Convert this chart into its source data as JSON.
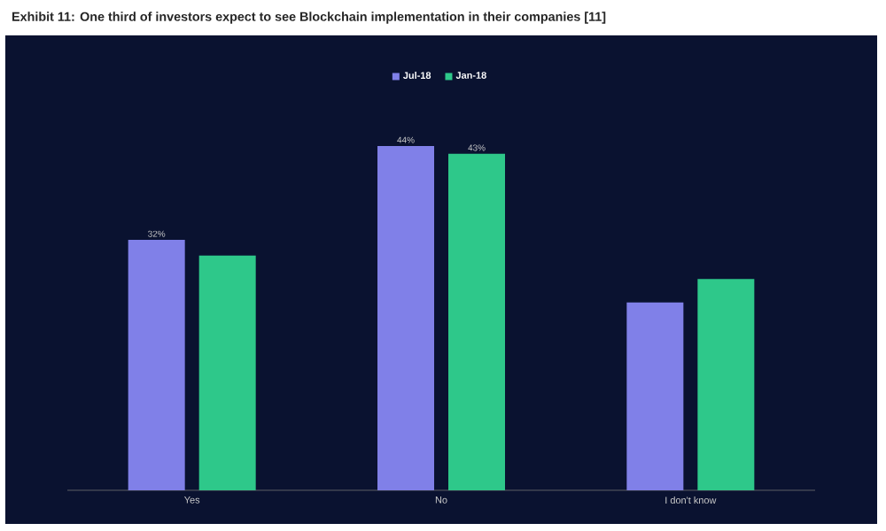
{
  "chart_data": {
    "type": "bar",
    "title": "Exhibit 11: One third of investors expect to see Blockchain implementation in their companies [11]",
    "categories": [
      "Yes",
      "No",
      "I don't know"
    ],
    "legend": "top",
    "series": [
      {
        "name": "Jul-18",
        "color": "#8080e8",
        "values": [
          32,
          44,
          24
        ],
        "value_labels": [
          "32%",
          "44%",
          null
        ]
      },
      {
        "name": "Jan-18",
        "color": "#2ec88a",
        "values": [
          30,
          43,
          27
        ],
        "value_labels": [
          null,
          "43%",
          null
        ]
      }
    ]
  }
}
